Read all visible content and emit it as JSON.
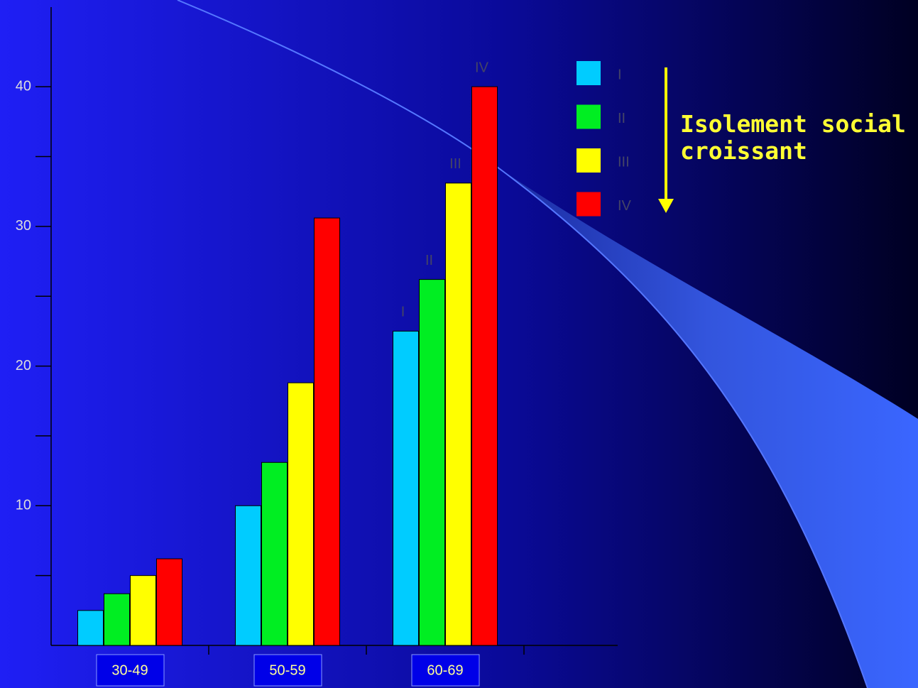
{
  "chart_data": {
    "type": "bar",
    "categories": [
      "30-49",
      "50-59",
      "60-69",
      null
    ],
    "series": [
      {
        "name": "I",
        "color": "#00ccff",
        "values": [
          2.5,
          10.0,
          22.5,
          null
        ]
      },
      {
        "name": "II",
        "color": "#00ee22",
        "values": [
          3.7,
          13.1,
          26.2,
          null
        ]
      },
      {
        "name": "III",
        "color": "#ffff00",
        "values": [
          5.0,
          18.8,
          33.1,
          null
        ]
      },
      {
        "name": "IV",
        "color": "#ff0000",
        "values": [
          6.2,
          30.6,
          40.0,
          null
        ]
      }
    ],
    "ylim": [
      0,
      45.7
    ],
    "yticks": [
      10,
      20,
      30,
      40
    ],
    "yminor_ticks": [
      5,
      15,
      25,
      35
    ],
    "legend": "top-right",
    "annotation": "Isolement social croissant"
  }
}
